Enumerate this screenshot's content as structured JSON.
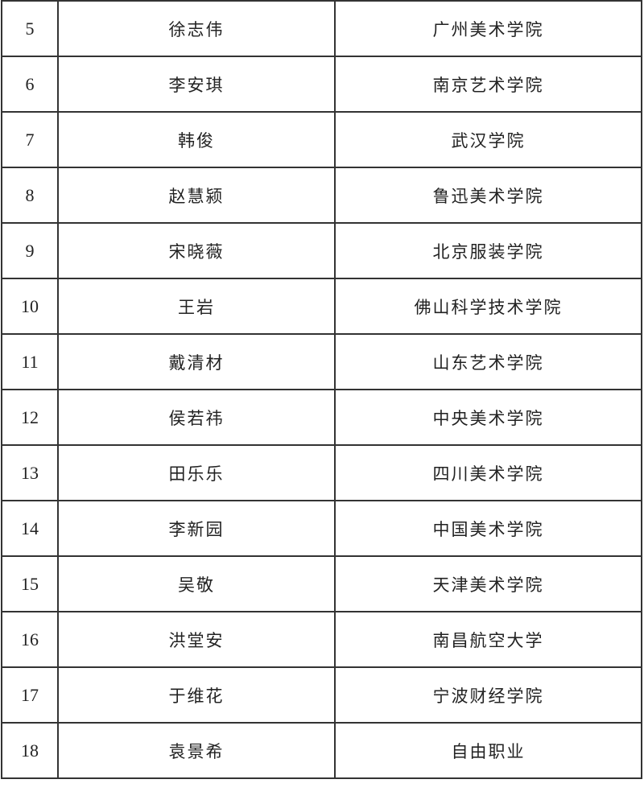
{
  "rows": [
    {
      "no": "5",
      "name": "徐志伟",
      "org": "广州美术学院"
    },
    {
      "no": "6",
      "name": "李安琪",
      "org": "南京艺术学院"
    },
    {
      "no": "7",
      "name": "韩俊",
      "org": "武汉学院"
    },
    {
      "no": "8",
      "name": "赵慧颍",
      "org": "鲁迅美术学院"
    },
    {
      "no": "9",
      "name": "宋晓薇",
      "org": "北京服装学院"
    },
    {
      "no": "10",
      "name": "王岩",
      "org": "佛山科学技术学院"
    },
    {
      "no": "11",
      "name": "戴清材",
      "org": "山东艺术学院"
    },
    {
      "no": "12",
      "name": "侯若祎",
      "org": "中央美术学院"
    },
    {
      "no": "13",
      "name": "田乐乐",
      "org": "四川美术学院"
    },
    {
      "no": "14",
      "name": "李新园",
      "org": "中国美术学院"
    },
    {
      "no": "15",
      "name": "吴敬",
      "org": "天津美术学院"
    },
    {
      "no": "16",
      "name": "洪堂安",
      "org": "南昌航空大学"
    },
    {
      "no": "17",
      "name": "于维花",
      "org": "宁波财经学院"
    },
    {
      "no": "18",
      "name": "袁景希",
      "org": "自由职业"
    }
  ]
}
